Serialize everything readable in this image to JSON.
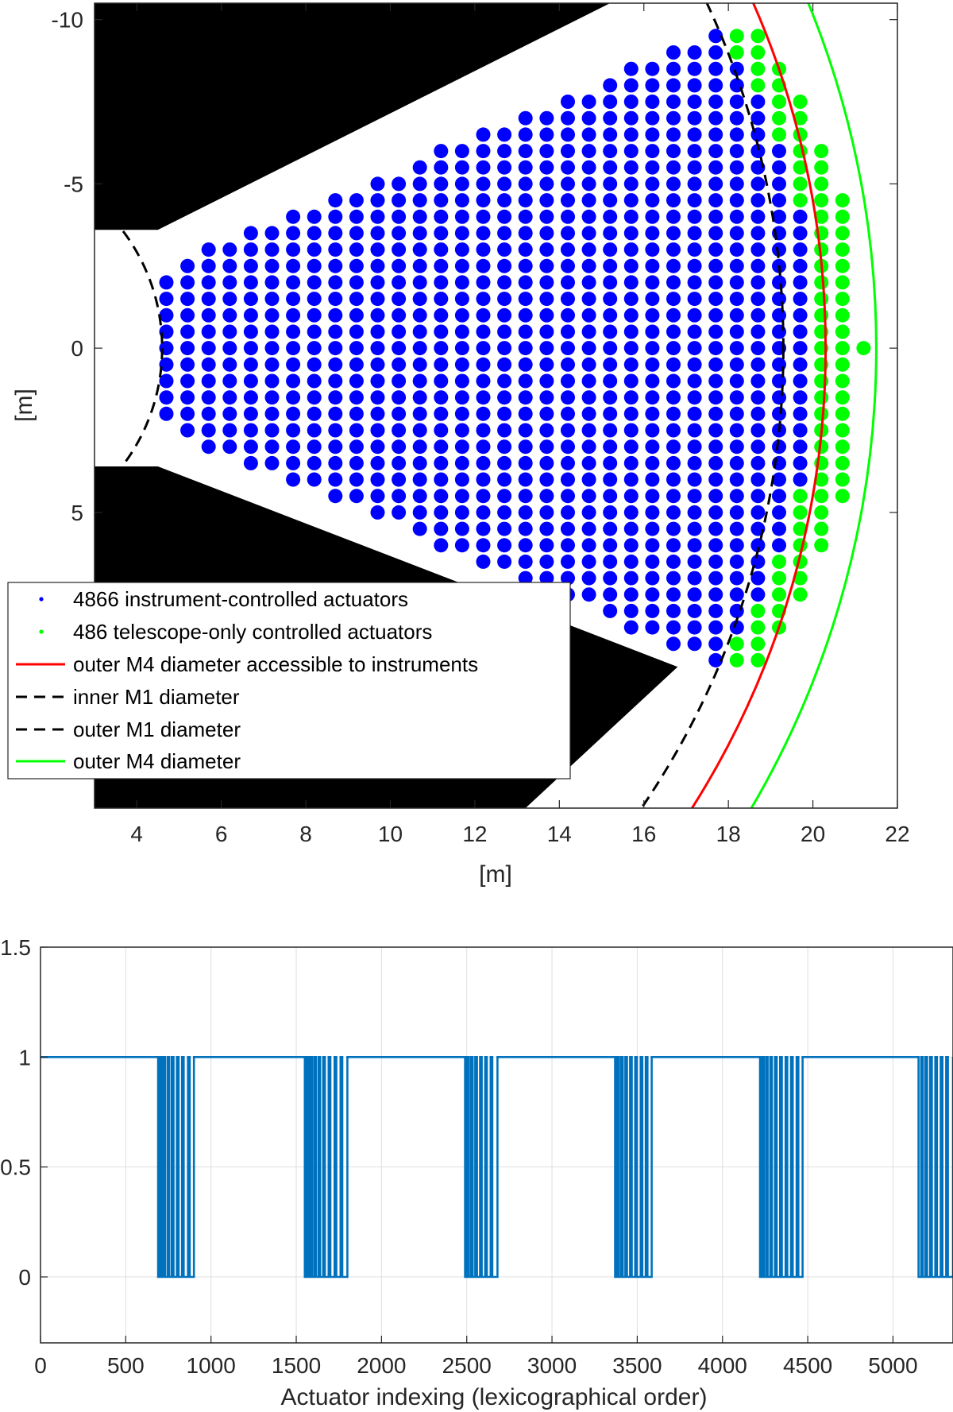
{
  "chart_data": [
    {
      "type": "scatter",
      "xlabel": "[m]",
      "ylabel": "[m]",
      "xlim": [
        3,
        22
      ],
      "ylim": [
        -10.5,
        14
      ],
      "y_reversed": true,
      "x_ticks": [
        "4",
        "6",
        "8",
        "10",
        "12",
        "14",
        "16",
        "18",
        "20",
        "22"
      ],
      "y_ticks": [
        "-10",
        "-5",
        "0",
        "5"
      ],
      "x_tick_values": [
        4,
        6,
        8,
        10,
        12,
        14,
        16,
        18,
        20,
        22
      ],
      "y_tick_values": [
        -10,
        -5,
        0,
        5
      ],
      "grid": false,
      "legend_position": "bottom-left",
      "colors": {
        "blue": "#0000ff",
        "green": "#00ff00",
        "red": "#ff0000",
        "black": "#000000"
      },
      "series": [
        {
          "name": "4866 instrument-controlled actuators",
          "kind": "points",
          "color": "#0000ff",
          "pitch_m": 0.5,
          "approx_count": 4866
        },
        {
          "name": "486 telescope-only controlled actuators",
          "kind": "points",
          "color": "#00ff00",
          "pitch_m": 0.5,
          "approx_count": 486
        },
        {
          "name": "outer M4 diameter accessible to instruments",
          "kind": "circle",
          "radius_m": 20.3,
          "color": "#ff0000",
          "dash": "solid"
        },
        {
          "name": "inner M1 diameter",
          "kind": "circle",
          "radius_m": 4.6,
          "color": "#000000",
          "dash": "dashed"
        },
        {
          "name": "outer M1 diameter",
          "kind": "circle",
          "radius_m": 19.3,
          "color": "#000000",
          "dash": "dashed"
        },
        {
          "name": "outer M4 diameter",
          "kind": "circle",
          "radius_m": 21.5,
          "color": "#00ff00",
          "dash": "solid"
        }
      ],
      "blocked_regions": [
        {
          "name": "upper-spider-shadow",
          "polygon": [
            [
              3,
              -10.5
            ],
            [
              15.2,
              -10.5
            ],
            [
              4.5,
              -3.6
            ],
            [
              3,
              -3.6
            ]
          ]
        },
        {
          "name": "lower-spider-shadow",
          "polygon": [
            [
              3,
              3.6
            ],
            [
              4.5,
              3.6
            ],
            [
              16.8,
              9.7
            ],
            [
              13.2,
              14
            ],
            [
              3,
              14
            ]
          ]
        }
      ]
    },
    {
      "type": "line",
      "xlabel": "Actuator indexing (lexicographical order)",
      "ylabel": "",
      "xlim": [
        0,
        5352
      ],
      "ylim": [
        -0.3,
        1.5
      ],
      "x_ticks": [
        "0",
        "500",
        "1000",
        "1500",
        "2000",
        "2500",
        "3000",
        "3500",
        "4000",
        "4500",
        "5000"
      ],
      "y_ticks": [
        "0",
        "0.5",
        "1",
        "1.5"
      ],
      "x_tick_values": [
        0,
        500,
        1000,
        1500,
        2000,
        2500,
        3000,
        3500,
        4000,
        4500,
        5000
      ],
      "y_tick_values": [
        0,
        0.5,
        1,
        1.5
      ],
      "grid": true,
      "color": "#0072bd",
      "baseline": 1,
      "zero_intervals": [
        [
          690,
          700
        ],
        [
          710,
          720
        ],
        [
          730,
          745
        ],
        [
          755,
          770
        ],
        [
          780,
          800
        ],
        [
          810,
          830
        ],
        [
          840,
          865
        ],
        [
          875,
          900
        ],
        [
          1550,
          1560
        ],
        [
          1570,
          1582
        ],
        [
          1592,
          1605
        ],
        [
          1615,
          1630
        ],
        [
          1640,
          1658
        ],
        [
          1668,
          1690
        ],
        [
          1700,
          1725
        ],
        [
          1735,
          1760
        ],
        [
          1770,
          1800
        ],
        [
          2490,
          2502
        ],
        [
          2512,
          2525
        ],
        [
          2535,
          2550
        ],
        [
          2560,
          2578
        ],
        [
          2588,
          2608
        ],
        [
          2618,
          2640
        ],
        [
          2650,
          2680
        ],
        [
          3370,
          3382
        ],
        [
          3392,
          3405
        ],
        [
          3415,
          3430
        ],
        [
          3440,
          3458
        ],
        [
          3468,
          3488
        ],
        [
          3498,
          3520
        ],
        [
          3530,
          3550
        ],
        [
          3560,
          3585
        ],
        [
          4220,
          4232
        ],
        [
          4242,
          4255
        ],
        [
          4265,
          4280
        ],
        [
          4290,
          4308
        ],
        [
          4318,
          4338
        ],
        [
          4348,
          4370
        ],
        [
          4380,
          4402
        ],
        [
          4412,
          4435
        ],
        [
          4445,
          4470
        ],
        [
          5150,
          5165
        ],
        [
          5175,
          5190
        ],
        [
          5200,
          5218
        ],
        [
          5228,
          5248
        ],
        [
          5258,
          5280
        ],
        [
          5290,
          5312
        ],
        [
          5322,
          5352
        ]
      ]
    }
  ]
}
